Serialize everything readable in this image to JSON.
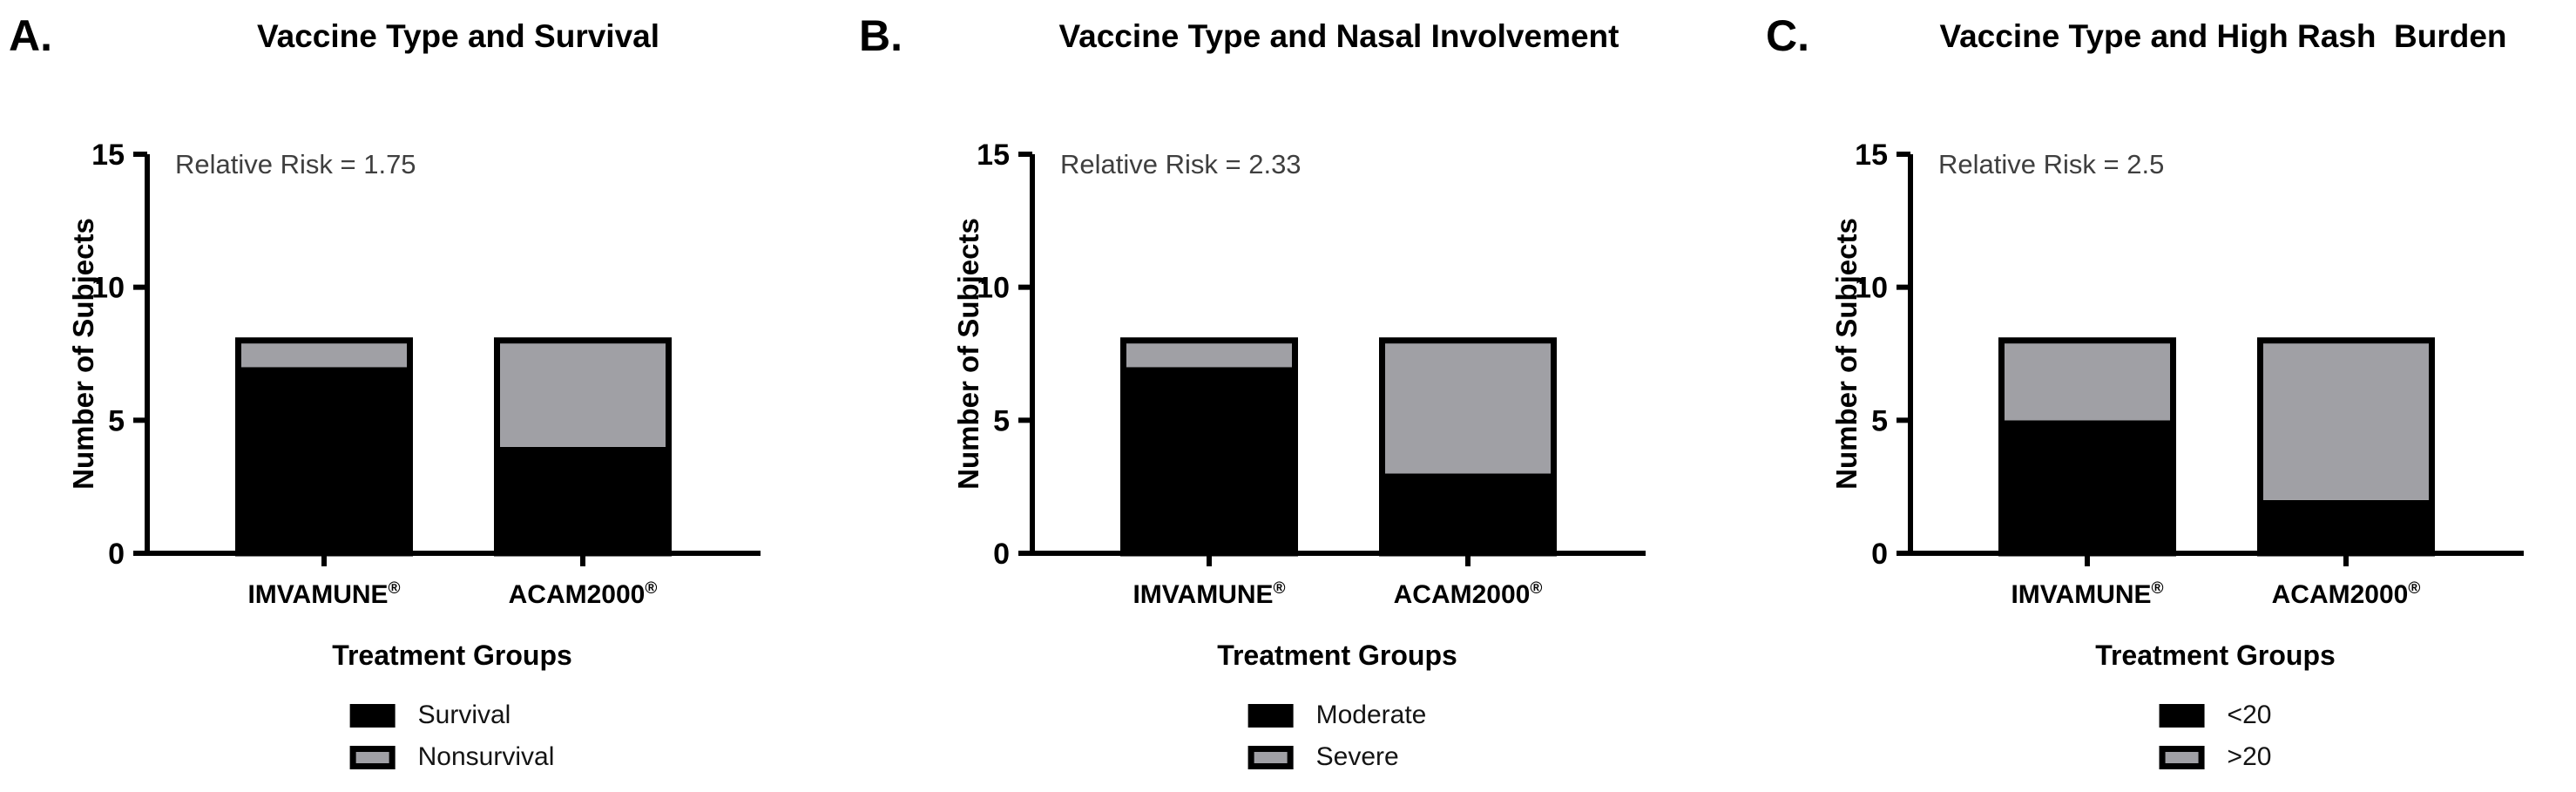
{
  "page": {
    "background": "#FFFFFF",
    "bar_outline_color": "#000000",
    "gray_fill": "#A0A0A5"
  },
  "chart_data": [
    {
      "type": "bar",
      "stacked": true,
      "panel_letter": "A.",
      "title": "Vaccine Type and Survival",
      "annotation": "Relative Risk = 1.75",
      "xlabel": "Treatment Groups",
      "ylabel": "Number of Subjects",
      "categories": [
        "IMVAMUNE®",
        "ACAM2000®"
      ],
      "ylim": [
        0,
        15
      ],
      "yticks": [
        0,
        5,
        10,
        15
      ],
      "series": [
        {
          "name": "Survival",
          "color": "#000000",
          "values": [
            7,
            4
          ]
        },
        {
          "name": "Nonsurvival",
          "color": "#A0A0A5",
          "values": [
            1,
            4
          ]
        }
      ],
      "legend_position": "bottom",
      "grid": false
    },
    {
      "type": "bar",
      "stacked": true,
      "panel_letter": "B.",
      "title": "Vaccine Type and Nasal Involvement",
      "annotation": "Relative Risk = 2.33",
      "xlabel": "Treatment Groups",
      "ylabel": "Number of Subjects",
      "categories": [
        "IMVAMUNE®",
        "ACAM2000®"
      ],
      "ylim": [
        0,
        15
      ],
      "yticks": [
        0,
        5,
        10,
        15
      ],
      "series": [
        {
          "name": "Moderate",
          "color": "#000000",
          "values": [
            7,
            3
          ]
        },
        {
          "name": "Severe",
          "color": "#A0A0A5",
          "values": [
            1,
            5
          ]
        }
      ],
      "legend_position": "bottom",
      "grid": false
    },
    {
      "type": "bar",
      "stacked": true,
      "panel_letter": "C.",
      "title": "Vaccine Type and High Rash  Burden",
      "annotation": "Relative Risk = 2.5",
      "xlabel": "Treatment Groups",
      "ylabel": "Number of Subjects",
      "categories": [
        "IMVAMUNE®",
        "ACAM2000®"
      ],
      "ylim": [
        0,
        15
      ],
      "yticks": [
        0,
        5,
        10,
        15
      ],
      "series": [
        {
          "name": "<20",
          "color": "#000000",
          "values": [
            5,
            2
          ]
        },
        {
          "name": ">20",
          "color": "#A0A0A5",
          "values": [
            3,
            6
          ]
        }
      ],
      "legend_position": "bottom",
      "grid": false
    }
  ]
}
